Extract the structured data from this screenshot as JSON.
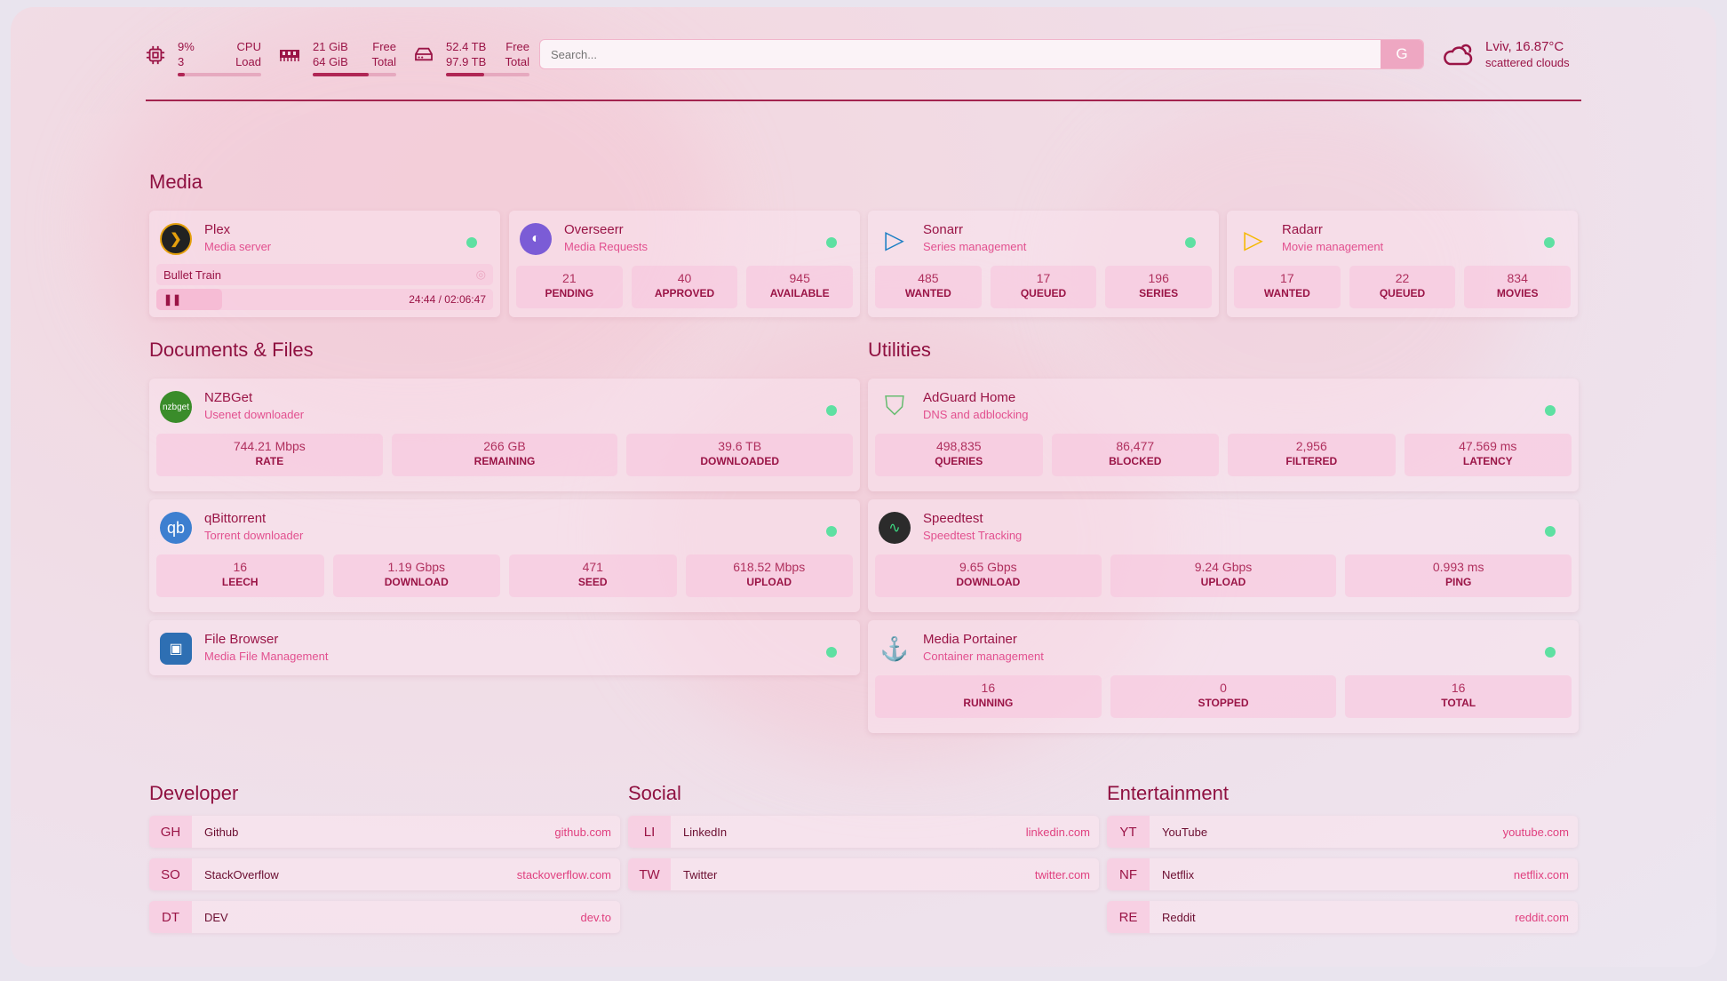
{
  "header": {
    "cpu": {
      "value": "9%",
      "sub": "3",
      "label1": "CPU",
      "label2": "Load",
      "percent": 9
    },
    "ram": {
      "value": "21 GiB",
      "sub": "64 GiB",
      "label1": "Free",
      "label2": "Total",
      "percent": 67
    },
    "disk": {
      "value": "52.4 TB",
      "sub": "97.9 TB",
      "label1": "Free",
      "label2": "Total",
      "percent": 46
    },
    "search": {
      "placeholder": "Search...",
      "button": "G"
    },
    "weather": {
      "location": "Lviv, 16.87°C",
      "condition": "scattered clouds",
      "icon": "cloud-sun-icon"
    }
  },
  "colors": {
    "accent": "#9a1446",
    "status_online": "#5ee0a2",
    "subtitle": "#e2508f"
  },
  "media": {
    "heading": "Media",
    "plex": {
      "title": "Plex",
      "sub": "Media server",
      "now_playing": "Bullet Train",
      "time": "24:44 / 02:06:47",
      "progress_percent": 19.5
    },
    "overseerr": {
      "title": "Overseerr",
      "sub": "Media Requests",
      "stats": [
        {
          "v": "21",
          "l": "PENDING"
        },
        {
          "v": "40",
          "l": "APPROVED"
        },
        {
          "v": "945",
          "l": "AVAILABLE"
        }
      ]
    },
    "sonarr": {
      "title": "Sonarr",
      "sub": "Series management",
      "stats": [
        {
          "v": "485",
          "l": "WANTED"
        },
        {
          "v": "17",
          "l": "QUEUED"
        },
        {
          "v": "196",
          "l": "SERIES"
        }
      ]
    },
    "radarr": {
      "title": "Radarr",
      "sub": "Movie management",
      "stats": [
        {
          "v": "17",
          "l": "WANTED"
        },
        {
          "v": "22",
          "l": "QUEUED"
        },
        {
          "v": "834",
          "l": "MOVIES"
        }
      ]
    }
  },
  "docs": {
    "heading": "Documents & Files",
    "nzbget": {
      "title": "NZBGet",
      "sub": "Usenet downloader",
      "icon": "nzbget",
      "stats": [
        {
          "v": "744.21 Mbps",
          "l": "RATE"
        },
        {
          "v": "266 GB",
          "l": "REMAINING"
        },
        {
          "v": "39.6 TB",
          "l": "DOWNLOADED"
        }
      ]
    },
    "qbit": {
      "title": "qBittorrent",
      "sub": "Torrent downloader",
      "icon": "qb",
      "stats": [
        {
          "v": "16",
          "l": "LEECH"
        },
        {
          "v": "1.19 Gbps",
          "l": "DOWNLOAD"
        },
        {
          "v": "471",
          "l": "SEED"
        },
        {
          "v": "618.52 Mbps",
          "l": "UPLOAD"
        }
      ]
    },
    "filebrowser": {
      "title": "File Browser",
      "sub": "Media File Management"
    }
  },
  "utilities": {
    "heading": "Utilities",
    "adguard": {
      "title": "AdGuard Home",
      "sub": "DNS and adblocking",
      "stats": [
        {
          "v": "498,835",
          "l": "QUERIES"
        },
        {
          "v": "86,477",
          "l": "BLOCKED"
        },
        {
          "v": "2,956",
          "l": "FILTERED"
        },
        {
          "v": "47.569 ms",
          "l": "LATENCY"
        }
      ]
    },
    "speedtest": {
      "title": "Speedtest",
      "sub": "Speedtest Tracking",
      "stats": [
        {
          "v": "9.65 Gbps",
          "l": "DOWNLOAD"
        },
        {
          "v": "9.24 Gbps",
          "l": "UPLOAD"
        },
        {
          "v": "0.993 ms",
          "l": "PING"
        }
      ]
    },
    "portainer": {
      "title": "Media Portainer",
      "sub": "Container management",
      "stats": [
        {
          "v": "16",
          "l": "RUNNING"
        },
        {
          "v": "0",
          "l": "STOPPED"
        },
        {
          "v": "16",
          "l": "TOTAL"
        }
      ]
    }
  },
  "bookmarks": [
    {
      "heading": "Developer",
      "items": [
        {
          "abbr": "GH",
          "name": "Github",
          "url": "github.com"
        },
        {
          "abbr": "SO",
          "name": "StackOverflow",
          "url": "stackoverflow.com"
        },
        {
          "abbr": "DT",
          "name": "DEV",
          "url": "dev.to"
        }
      ]
    },
    {
      "heading": "Social",
      "items": [
        {
          "abbr": "LI",
          "name": "LinkedIn",
          "url": "linkedin.com"
        },
        {
          "abbr": "TW",
          "name": "Twitter",
          "url": "twitter.com"
        }
      ]
    },
    {
      "heading": "Entertainment",
      "items": [
        {
          "abbr": "YT",
          "name": "YouTube",
          "url": "youtube.com"
        },
        {
          "abbr": "NF",
          "name": "Netflix",
          "url": "netflix.com"
        },
        {
          "abbr": "RE",
          "name": "Reddit",
          "url": "reddit.com"
        }
      ]
    }
  ]
}
